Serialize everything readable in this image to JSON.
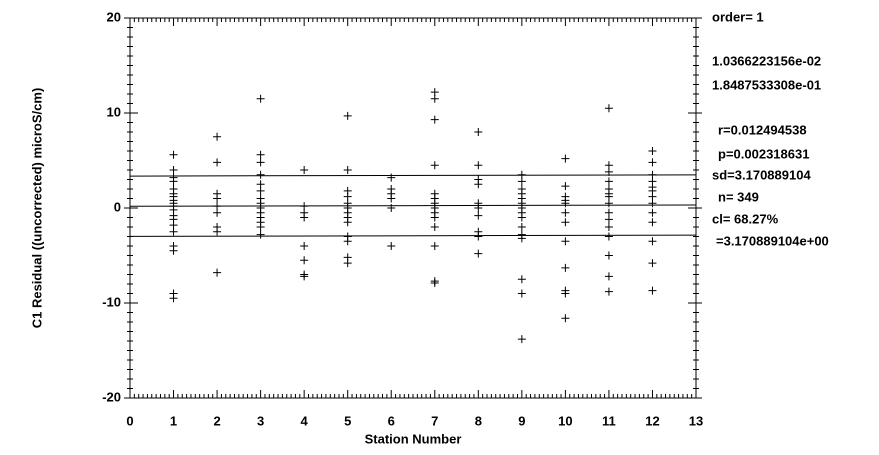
{
  "chart_data": {
    "type": "scatter",
    "x_label": "Station Number",
    "y_label": "C1 Residual ((uncorrected) microS/cm)",
    "xlim": [
      0,
      13
    ],
    "xticks": [
      0,
      1,
      2,
      3,
      4,
      5,
      6,
      7,
      8,
      9,
      10,
      11,
      12,
      13
    ],
    "ylim": [
      -20,
      20
    ],
    "yticks": [
      -20,
      -10,
      0,
      10,
      20
    ],
    "marker": "+",
    "color": "#000000",
    "points": [
      {
        "x": 1,
        "values": [
          5.6,
          4.0,
          3.2,
          2.8,
          2.0,
          1.5,
          1.2,
          0.8,
          0.5,
          0.2,
          -0.2,
          -0.8,
          -1.2,
          -1.8,
          -2.5,
          -4.0,
          -4.5,
          -9.0,
          -9.5
        ]
      },
      {
        "x": 2,
        "values": [
          7.5,
          4.8,
          1.5,
          1.0,
          0.2,
          -0.5,
          -2.0,
          -2.5,
          -6.8
        ]
      },
      {
        "x": 3,
        "values": [
          11.5,
          5.6,
          4.8,
          3.5,
          2.5,
          1.8,
          1.0,
          0.5,
          0,
          -0.5,
          -1.0,
          -1.5,
          -2.0,
          -2.8
        ]
      },
      {
        "x": 4,
        "values": [
          4.0,
          0.2,
          -0.5,
          -1.0,
          -4.0,
          -5.5,
          -7.0,
          -7.2
        ]
      },
      {
        "x": 5,
        "values": [
          9.7,
          4.0,
          1.8,
          1.2,
          0.5,
          0,
          -0.5,
          -1.0,
          -1.5,
          -3.0,
          -3.5,
          -5.2,
          -5.8
        ]
      },
      {
        "x": 6,
        "values": [
          3.2,
          2.0,
          1.5,
          1.0,
          0,
          -4.0
        ]
      },
      {
        "x": 7,
        "values": [
          12.2,
          11.5,
          9.3,
          4.5,
          1.5,
          1.0,
          0.5,
          0,
          -0.5,
          -1.0,
          -2.0,
          -4.0,
          -7.7,
          -7.9
        ]
      },
      {
        "x": 8,
        "values": [
          8.0,
          4.5,
          3.0,
          2.5,
          0.5,
          0,
          -0.8,
          -2.5,
          -3.0,
          -4.8
        ]
      },
      {
        "x": 9,
        "values": [
          3.5,
          2.8,
          2.0,
          1.5,
          1.0,
          0.5,
          0,
          -0.5,
          -1.0,
          -2.0,
          -2.8,
          -3.2,
          -7.5,
          -9.0,
          -13.8
        ]
      },
      {
        "x": 10,
        "values": [
          5.2,
          2.3,
          1.2,
          0.8,
          0.5,
          -0.5,
          -1.5,
          -3.5,
          -6.3,
          -8.7,
          -9.0,
          -11.6
        ]
      },
      {
        "x": 11,
        "values": [
          10.5,
          4.5,
          3.8,
          2.8,
          2.0,
          1.5,
          1.2,
          0.5,
          -0.5,
          -1.2,
          -2.0,
          -3.0,
          -5.0,
          -7.2,
          -8.8
        ]
      },
      {
        "x": 12,
        "values": [
          6.0,
          4.8,
          3.5,
          2.8,
          2.2,
          1.8,
          1.2,
          0.5,
          -0.5,
          -1.5,
          -3.5,
          -5.8,
          -8.7
        ]
      }
    ],
    "lines": [
      {
        "x": [
          0,
          13
        ],
        "values": [
          3.36,
          3.49
        ]
      },
      {
        "x": [
          0,
          13
        ],
        "values": [
          0.18,
          0.32
        ]
      },
      {
        "x": [
          0,
          13
        ],
        "values": [
          -2.99,
          -2.85
        ]
      }
    ],
    "annotations": [
      "order= 1",
      "1.0366223156e-02",
      "1.8487533308e-01",
      "r=0.012494538",
      "p=0.002318631",
      "sd=3.170889104",
      "n= 349",
      "cl= 68.27%",
      "=3.170889104e+00"
    ]
  }
}
